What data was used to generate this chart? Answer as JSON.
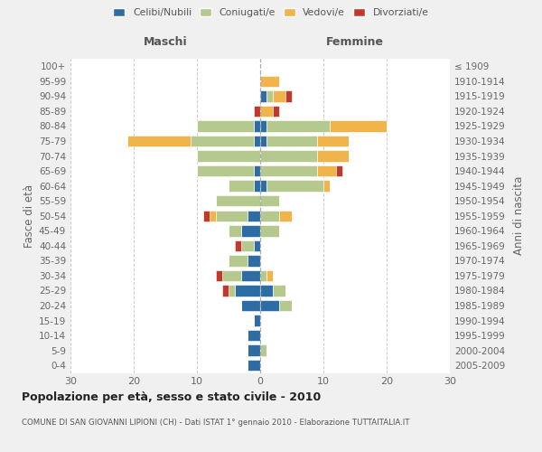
{
  "age_groups": [
    "0-4",
    "5-9",
    "10-14",
    "15-19",
    "20-24",
    "25-29",
    "30-34",
    "35-39",
    "40-44",
    "45-49",
    "50-54",
    "55-59",
    "60-64",
    "65-69",
    "70-74",
    "75-79",
    "80-84",
    "85-89",
    "90-94",
    "95-99",
    "100+"
  ],
  "birth_years": [
    "2005-2009",
    "2000-2004",
    "1995-1999",
    "1990-1994",
    "1985-1989",
    "1980-1984",
    "1975-1979",
    "1970-1974",
    "1965-1969",
    "1960-1964",
    "1955-1959",
    "1950-1954",
    "1945-1949",
    "1940-1944",
    "1935-1939",
    "1930-1934",
    "1925-1929",
    "1920-1924",
    "1915-1919",
    "1910-1914",
    "≤ 1909"
  ],
  "colors": {
    "celibi": "#2e6da4",
    "coniugati": "#b5c98e",
    "vedovi": "#f0b44b",
    "divorziati": "#c0392b"
  },
  "maschi": {
    "celibi": [
      2,
      2,
      2,
      1,
      3,
      4,
      3,
      2,
      1,
      3,
      2,
      0,
      1,
      1,
      0,
      1,
      1,
      0,
      0,
      0,
      0
    ],
    "coniugati": [
      0,
      0,
      0,
      0,
      0,
      1,
      3,
      3,
      2,
      2,
      5,
      7,
      4,
      9,
      10,
      10,
      9,
      0,
      0,
      0,
      0
    ],
    "vedovi": [
      0,
      0,
      0,
      0,
      0,
      0,
      0,
      0,
      0,
      0,
      1,
      0,
      0,
      0,
      0,
      10,
      0,
      0,
      0,
      0,
      0
    ],
    "divorziati": [
      0,
      0,
      0,
      0,
      0,
      1,
      1,
      0,
      1,
      0,
      1,
      0,
      0,
      0,
      0,
      0,
      0,
      1,
      0,
      0,
      0
    ]
  },
  "femmine": {
    "celibi": [
      0,
      0,
      0,
      0,
      3,
      2,
      0,
      0,
      0,
      0,
      0,
      0,
      1,
      0,
      0,
      1,
      1,
      0,
      1,
      0,
      0
    ],
    "coniugati": [
      0,
      1,
      0,
      0,
      2,
      2,
      1,
      0,
      0,
      3,
      3,
      3,
      9,
      9,
      9,
      8,
      10,
      0,
      1,
      0,
      0
    ],
    "vedovi": [
      0,
      0,
      0,
      0,
      0,
      0,
      1,
      0,
      0,
      0,
      2,
      0,
      1,
      3,
      5,
      5,
      9,
      2,
      2,
      3,
      0
    ],
    "divorziati": [
      0,
      0,
      0,
      0,
      0,
      0,
      0,
      0,
      0,
      0,
      0,
      0,
      0,
      1,
      0,
      0,
      0,
      1,
      1,
      0,
      0
    ]
  },
  "xlim": 30,
  "title": "Popolazione per età, sesso e stato civile - 2010",
  "subtitle": "COMUNE DI SAN GIOVANNI LIPIONI (CH) - Dati ISTAT 1° gennaio 2010 - Elaborazione TUTTAITALIA.IT",
  "ylabel_left": "Fasce di età",
  "ylabel_right": "Anni di nascita",
  "xlabel_left": "Maschi",
  "xlabel_right": "Femmine",
  "bg_color": "#f0f0f0",
  "plot_bg_color": "#ffffff"
}
